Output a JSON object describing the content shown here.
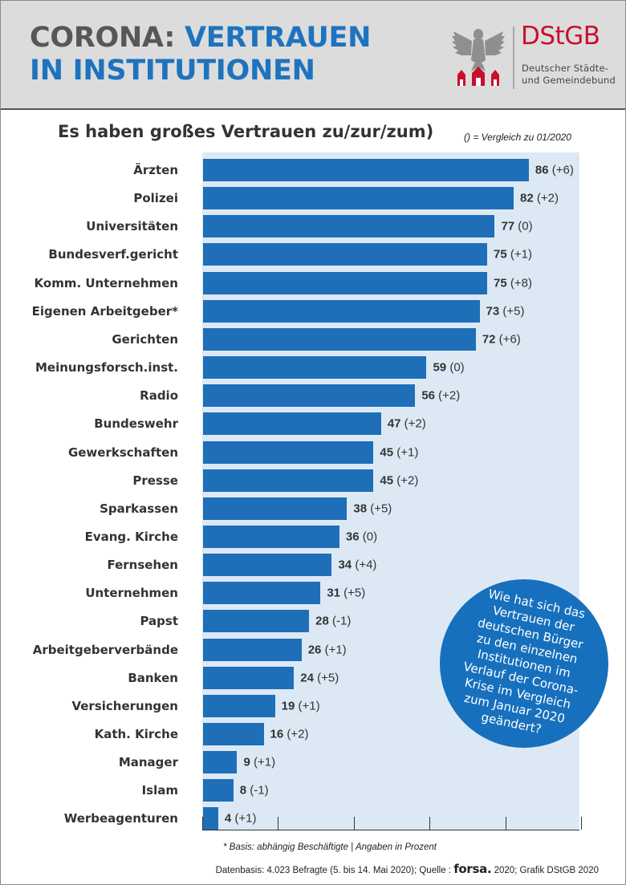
{
  "header": {
    "title_line1a": "CORONA: ",
    "title_line1b": "VERTRAUEN",
    "title_line2": "IN INSTITUTIONEN",
    "logo_name": "DStGB",
    "logo_sub1": "Deutscher Städte-",
    "logo_sub2": "und Gemeindebund"
  },
  "subtitle": "Es haben großes Vertrauen zu/zur/zum)",
  "note": "() = Vergleich zu 01/2020",
  "callout": "Wie hat sich das Vertrauen der deutschen Bürger zu den einzelnen Institutionen im Verlauf der Corona-Krise im Vergleich zum Januar 2020 geändert?",
  "footnote": "* Basis: abhängig Beschäftigte | Angaben in Prozent",
  "source": {
    "prefix": "Datenbasis: 4.023 Befragte (5. bis 14. Mai 2020); Quelle : ",
    "brand": "forsa.",
    "suffix": " 2020; Grafik DStGB 2020"
  },
  "colors": {
    "bar": "#1e6fb8",
    "plot_bg": "#dce9f5",
    "title_blue": "#1e73be",
    "title_grey": "#575757",
    "logo_red": "#c8102e"
  },
  "chart_data": {
    "type": "bar",
    "orientation": "horizontal",
    "xlim": [
      0,
      100
    ],
    "categories": [
      "Ärzten",
      "Polizei",
      "Universitäten",
      "Bundesverf.gericht",
      "Komm. Unternehmen",
      "Eigenen Arbeitgeber*",
      "Gerichten",
      "Meinungsforsch.inst.",
      "Radio",
      "Bundeswehr",
      "Gewerkschaften",
      "Presse",
      "Sparkassen",
      "Evang. Kirche",
      "Fernsehen",
      "Unternehmen",
      "Papst",
      "Arbeitgeberverbände",
      "Banken",
      "Versicherungen",
      "Kath. Kirche",
      "Manager",
      "Islam",
      "Werbeagenturen"
    ],
    "values": [
      86,
      82,
      77,
      75,
      75,
      73,
      72,
      59,
      56,
      47,
      45,
      45,
      38,
      36,
      34,
      31,
      28,
      26,
      24,
      19,
      16,
      9,
      8,
      4
    ],
    "changes": [
      "(+6)",
      "(+2)",
      "(0)",
      "(+1)",
      "(+8)",
      "(+5)",
      "(+6)",
      "(0)",
      "(+2)",
      "(+2)",
      "(+1)",
      "(+2)",
      "(+5)",
      "(0)",
      "(+4)",
      "(+5)",
      "(-1)",
      "(+1)",
      "(+5)",
      "(+1)",
      "(+2)",
      "(+1)",
      "(-1)",
      "(+1)"
    ],
    "value_spacing": [
      " ",
      " ",
      " ",
      " ",
      "",
      " ",
      " ",
      " ",
      " ",
      " ",
      " ",
      " ",
      " ",
      " ",
      " ",
      " ",
      " ",
      " ",
      " ",
      " ",
      " ",
      " ",
      " ",
      " "
    ]
  }
}
